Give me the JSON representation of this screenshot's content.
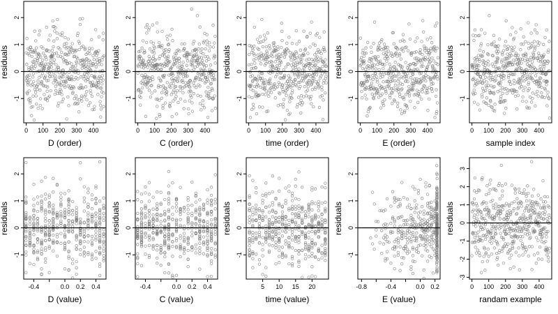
{
  "figure": {
    "background": "#ffffff",
    "point_color": "#7a7a7a",
    "line_color": "#000000"
  },
  "chart_data": [
    {
      "type": "scatter",
      "xlabel": "D (order)",
      "ylabel": "residuals",
      "xticks": [
        0,
        100,
        200,
        300,
        400
      ],
      "xlim": [
        -15,
        475
      ],
      "yticks": [
        -1,
        0,
        1,
        2
      ],
      "ylim": [
        -1.9,
        2.6
      ],
      "hline": 0,
      "points": {
        "kind": "order",
        "n": 463
      }
    },
    {
      "type": "scatter",
      "xlabel": "C (order)",
      "ylabel": "residuals",
      "xticks": [
        0,
        100,
        200,
        300,
        400
      ],
      "xlim": [
        -15,
        475
      ],
      "yticks": [
        -1,
        0,
        1,
        2
      ],
      "ylim": [
        -1.9,
        2.6
      ],
      "hline": 0,
      "points": {
        "kind": "order",
        "n": 463
      }
    },
    {
      "type": "scatter",
      "xlabel": "time (order)",
      "ylabel": "residuals",
      "xticks": [
        0,
        100,
        200,
        300,
        400
      ],
      "xlim": [
        -15,
        475
      ],
      "yticks": [
        -1,
        0,
        1,
        2
      ],
      "ylim": [
        -1.9,
        2.6
      ],
      "hline": 0,
      "points": {
        "kind": "order",
        "n": 463
      }
    },
    {
      "type": "scatter",
      "xlabel": "E (order)",
      "ylabel": "residuals",
      "xticks": [
        0,
        100,
        200,
        300,
        400
      ],
      "xlim": [
        -15,
        475
      ],
      "yticks": [
        -1,
        0,
        1,
        2
      ],
      "ylim": [
        -1.9,
        2.6
      ],
      "hline": 0,
      "points": {
        "kind": "order",
        "n": 463
      }
    },
    {
      "type": "scatter",
      "xlabel": "sample index",
      "ylabel": "residuals",
      "xticks": [
        0,
        100,
        200,
        300,
        400
      ],
      "xlim": [
        -15,
        475
      ],
      "yticks": [
        -1,
        0,
        1,
        2
      ],
      "ylim": [
        -1.9,
        2.6
      ],
      "hline": 0,
      "points": {
        "kind": "order",
        "n": 463
      }
    },
    {
      "type": "scatter",
      "xlabel": "D (value)",
      "ylabel": "residuals",
      "xticks": [
        -0.4,
        -0.2,
        0.0,
        0.2,
        0.4
      ],
      "xtick_labels": [
        "-0.4",
        "",
        "0.0",
        "0.2",
        "0.4"
      ],
      "xlim": [
        -0.53,
        0.53
      ],
      "yticks": [
        -1,
        0,
        1,
        2
      ],
      "ylim": [
        -1.9,
        2.6
      ],
      "hline": 0,
      "points": {
        "kind": "discrete",
        "n": 463,
        "xmin": -0.5,
        "xmax": 0.5,
        "levels": 21
      }
    },
    {
      "type": "scatter",
      "xlabel": "C (value)",
      "ylabel": "residuals",
      "xticks": [
        -0.4,
        -0.2,
        0.0,
        0.2,
        0.4
      ],
      "xtick_labels": [
        "-0.4",
        "",
        "0.0",
        "0.2",
        "0.4"
      ],
      "xlim": [
        -0.53,
        0.53
      ],
      "yticks": [
        -1,
        0,
        1,
        2
      ],
      "ylim": [
        -1.9,
        2.6
      ],
      "hline": 0,
      "points": {
        "kind": "discrete",
        "n": 463,
        "xmin": -0.5,
        "xmax": 0.5,
        "levels": 21
      }
    },
    {
      "type": "scatter",
      "xlabel": "time (value)",
      "ylabel": "residuals",
      "xticks": [
        5,
        10,
        15,
        20
      ],
      "xlim": [
        0,
        25
      ],
      "yticks": [
        -1,
        0,
        1,
        2
      ],
      "ylim": [
        -1.9,
        2.6
      ],
      "hline": 0,
      "points": {
        "kind": "discrete",
        "n": 463,
        "xmin": 1,
        "xmax": 24,
        "levels": 24
      }
    },
    {
      "type": "scatter",
      "xlabel": "E (value)",
      "ylabel": "residuals",
      "xticks": [
        -0.8,
        -0.6,
        -0.4,
        -0.2,
        0.0,
        0.2
      ],
      "xtick_labels": [
        "-0.8",
        "",
        "-0.4",
        "",
        "0.0",
        "0.2"
      ],
      "xlim": [
        -0.85,
        0.27
      ],
      "yticks": [
        -1,
        0,
        1,
        2
      ],
      "ylim": [
        -1.9,
        2.6
      ],
      "hline": 0,
      "points": {
        "kind": "skewed",
        "n": 463,
        "xmin": -0.8,
        "xmax": 0.23,
        "clump_at": 0.23
      }
    },
    {
      "type": "scatter",
      "xlabel": "randam example",
      "ylabel": "residuals",
      "xticks": [
        0,
        100,
        200,
        300,
        400
      ],
      "xlim": [
        -15,
        475
      ],
      "yticks": [
        -3,
        -2,
        -1,
        0,
        1,
        2,
        3
      ],
      "ylim": [
        -3.1,
        3.6
      ],
      "hline": 0,
      "points": {
        "kind": "order",
        "n": 463,
        "sd": 1.1
      }
    }
  ]
}
